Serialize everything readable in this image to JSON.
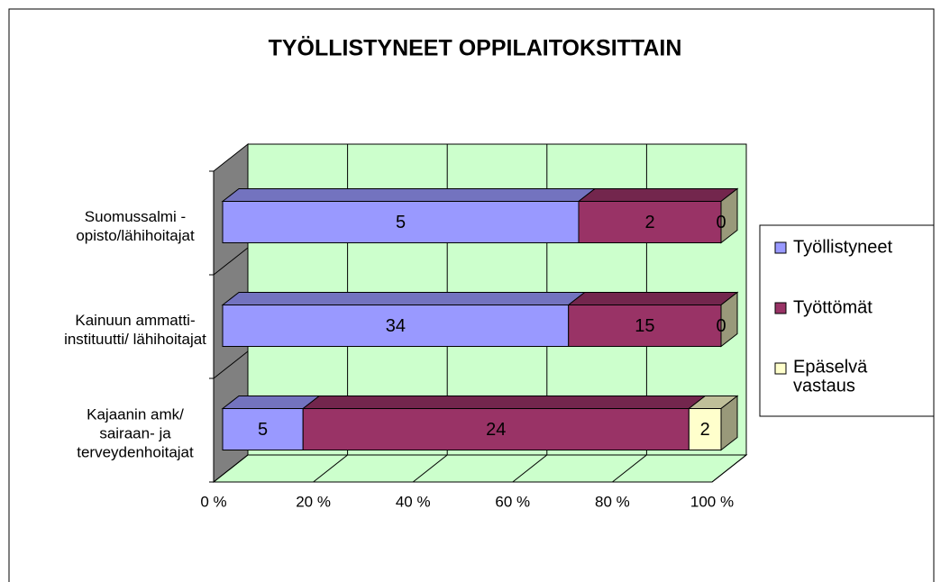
{
  "chart_data": {
    "type": "bar",
    "orientation": "horizontal",
    "stacking": "percent",
    "title": "TYÖLLISTYNEET OPPILAITOKSITTAIN",
    "categories": [
      "Suomussalmi -\nopisto/lähihoitajat",
      "Kainuun ammatti-\ninstituutti/ lähihoitajat",
      "Kajaanin amk/\nsairaan- ja\nterveydenhoitajat"
    ],
    "series": [
      {
        "name": "Työllistyneet",
        "color": "#9999ff",
        "values": [
          5,
          34,
          5
        ]
      },
      {
        "name": "Työttömät",
        "color": "#993366",
        "values": [
          2,
          15,
          24
        ]
      },
      {
        "name": "Epäselvä\nvastaus",
        "color": "#ffffcc",
        "values": [
          0,
          0,
          2
        ]
      }
    ],
    "xlim": [
      0,
      100
    ],
    "xticks": [
      {
        "value": 0,
        "label": "0 %"
      },
      {
        "value": 20,
        "label": "20 %"
      },
      {
        "value": 40,
        "label": "40 %"
      },
      {
        "value": 60,
        "label": "60 %"
      },
      {
        "value": 80,
        "label": "80 %"
      },
      {
        "value": 100,
        "label": "100 %"
      }
    ],
    "grid": true,
    "legend": "right"
  }
}
